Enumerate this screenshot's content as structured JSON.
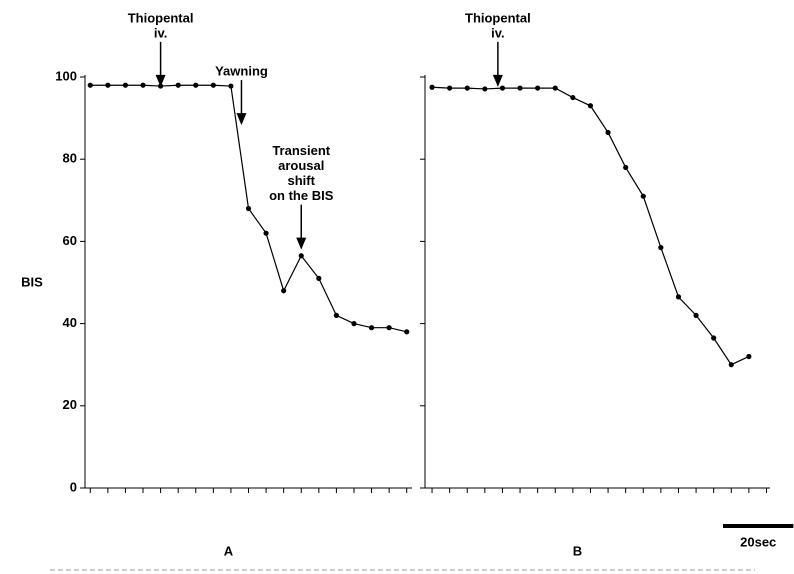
{
  "chart_data": [
    {
      "type": "line",
      "panel": "A",
      "y_label": "BIS",
      "x": [
        0,
        5,
        10,
        15,
        20,
        25,
        30,
        35,
        40,
        45,
        50,
        55,
        60,
        65,
        70,
        75,
        80,
        85,
        90
      ],
      "series": [
        {
          "color": "#000000",
          "values": [
            98,
            98,
            98,
            98,
            97.8,
            98,
            98,
            98,
            97.8,
            68,
            62,
            48,
            56.5,
            51,
            42,
            40,
            39,
            39,
            38
          ]
        }
      ],
      "xlim": [
        -1.5,
        91.5
      ],
      "xticks": [
        0,
        5,
        10,
        15,
        20,
        25,
        30,
        35,
        40,
        45,
        50,
        55,
        60,
        65,
        70,
        75,
        80,
        85,
        90
      ],
      "ylim": [
        0,
        100
      ],
      "yticks": [
        0,
        20,
        40,
        60,
        80,
        100
      ],
      "ytick_labels": true,
      "annotations": [
        {
          "lines": [
            "Thiopental",
            "iv."
          ],
          "x": 20,
          "y": 97.6
        },
        {
          "lines": [
            "Yawning"
          ],
          "x": 43,
          "y": 88.3
        },
        {
          "lines": [
            "Transient",
            "arousal",
            "shift",
            "on the BIS"
          ],
          "x": 60,
          "y": 58
        }
      ]
    },
    {
      "type": "line",
      "panel": "B",
      "x": [
        0,
        5,
        10,
        15,
        20,
        25,
        30,
        35,
        40,
        45,
        50,
        55,
        60,
        65,
        70,
        75,
        80,
        85,
        90
      ],
      "series": [
        {
          "color": "#000000",
          "values": [
            97.5,
            97.3,
            97.3,
            97.1,
            97.3,
            97.3,
            97.3,
            97.3,
            95,
            93,
            86.5,
            78,
            71,
            58.5,
            46.5,
            42,
            36.5,
            30,
            32
          ]
        }
      ],
      "xlim": [
        -2,
        96
      ],
      "xticks": [
        0,
        5,
        10,
        15,
        20,
        25,
        30,
        35,
        40,
        45,
        50,
        55,
        60,
        65,
        70,
        75,
        80,
        85,
        90,
        95
      ],
      "ylim": [
        0,
        100
      ],
      "yticks": [
        0,
        20,
        40,
        60,
        80,
        100
      ],
      "ytick_labels": false,
      "annotations": [
        {
          "lines": [
            "Thiopental",
            "iv."
          ],
          "x": 18.7,
          "y": 97.6
        }
      ],
      "scale_bar": {
        "value": 20,
        "label": "20sec"
      }
    }
  ]
}
